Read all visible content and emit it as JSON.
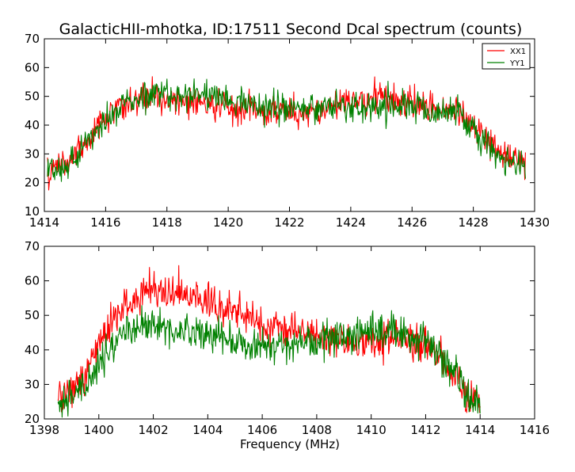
{
  "figure": {
    "title": "GalacticHII-mhotka, ID:17511 Second Dcal spectrum (counts)",
    "xlabel": "Frequency (MHz)"
  },
  "chart_data": [
    {
      "type": "line",
      "title": "GalacticHII-mhotka, ID:17511 Second Dcal spectrum (counts)",
      "xlabel": "",
      "ylabel": "",
      "xlim": [
        1414,
        1430
      ],
      "ylim": [
        10,
        70
      ],
      "x_ticks": [
        "1414",
        "1416",
        "1418",
        "1420",
        "1422",
        "1424",
        "1426",
        "1428",
        "1430"
      ],
      "y_ticks": [
        "10",
        "20",
        "30",
        "40",
        "50",
        "60",
        "70"
      ],
      "legend": {
        "position": "top-right",
        "entries": [
          "XX1",
          "YY1"
        ]
      },
      "grid": false,
      "series": [
        {
          "name": "XX1",
          "color": "#ff0000",
          "x": [
            1414.1,
            1414.5,
            1415,
            1415.5,
            1416,
            1416.5,
            1417,
            1417.5,
            1418,
            1418.5,
            1419,
            1419.5,
            1420,
            1420.3,
            1420.5,
            1421,
            1421.5,
            1422,
            1422.5,
            1423,
            1423.5,
            1424,
            1424.5,
            1425,
            1425.5,
            1426,
            1426.5,
            1427,
            1427.5,
            1428,
            1428.5,
            1429,
            1429.5,
            1429.7
          ],
          "y": [
            23,
            26,
            30,
            36,
            42,
            47,
            49,
            50,
            49,
            48,
            48,
            47,
            47,
            44,
            46,
            45,
            45,
            45,
            45,
            46,
            47,
            48,
            49,
            49,
            48,
            48,
            47,
            46,
            44,
            40,
            34,
            29,
            27,
            25
          ]
        },
        {
          "name": "YY1",
          "color": "#008000",
          "x": [
            1414.1,
            1414.5,
            1415,
            1415.5,
            1416,
            1416.5,
            1417,
            1417.5,
            1418,
            1418.5,
            1419,
            1419.5,
            1420,
            1420.5,
            1421,
            1421.5,
            1422,
            1422.5,
            1423,
            1423.5,
            1424,
            1424.5,
            1425,
            1425.5,
            1426,
            1426.5,
            1427,
            1427.5,
            1428,
            1428.5,
            1429,
            1429.5,
            1429.7
          ],
          "y": [
            23,
            25,
            29,
            35,
            42,
            46,
            49,
            51,
            51,
            50,
            51,
            50,
            49,
            48,
            46,
            46,
            46,
            46,
            46,
            46,
            47,
            47,
            47,
            47,
            46,
            46,
            45,
            44,
            39,
            33,
            28,
            26,
            23
          ]
        }
      ]
    },
    {
      "type": "line",
      "title": "",
      "xlabel": "Frequency (MHz)",
      "ylabel": "",
      "xlim": [
        1398,
        1416
      ],
      "ylim": [
        20,
        70
      ],
      "x_ticks": [
        "1398",
        "1400",
        "1402",
        "1404",
        "1406",
        "1408",
        "1410",
        "1412",
        "1414",
        "1416"
      ],
      "y_ticks": [
        "20",
        "30",
        "40",
        "50",
        "60",
        "70"
      ],
      "grid": false,
      "series": [
        {
          "color": "#ff0000",
          "x": [
            1398.5,
            1399,
            1399.5,
            1400,
            1400.5,
            1401,
            1401.5,
            1402,
            1402.5,
            1403,
            1403.5,
            1404,
            1404.5,
            1405,
            1405.5,
            1406,
            1406.5,
            1407,
            1407.5,
            1408,
            1408.5,
            1409,
            1409.5,
            1410,
            1410.5,
            1411,
            1411.5,
            1412,
            1412.5,
            1413,
            1413.5,
            1414
          ],
          "y": [
            27,
            29,
            33,
            42,
            48,
            53,
            56,
            57,
            56,
            55,
            55,
            54,
            52,
            51,
            49,
            48,
            47,
            46,
            45,
            44,
            43,
            43,
            42,
            42,
            43,
            44,
            43,
            41,
            38,
            32,
            27,
            25
          ]
        },
        {
          "color": "#008000",
          "x": [
            1398.5,
            1399,
            1399.5,
            1400,
            1400.5,
            1401,
            1401.5,
            1402,
            1402.5,
            1403,
            1403.5,
            1404,
            1404.5,
            1405,
            1405.5,
            1406,
            1406.5,
            1407,
            1407.5,
            1408,
            1408.5,
            1409,
            1409.5,
            1410,
            1410.5,
            1411,
            1411.5,
            1412,
            1412.5,
            1413,
            1413.5,
            1414
          ],
          "y": [
            23,
            27,
            30,
            36,
            42,
            46,
            47,
            47,
            46,
            45,
            45,
            44,
            43,
            42,
            41,
            41,
            41,
            41,
            42,
            42,
            43,
            44,
            44,
            45,
            45,
            45,
            44,
            42,
            39,
            33,
            28,
            24
          ]
        }
      ]
    }
  ]
}
